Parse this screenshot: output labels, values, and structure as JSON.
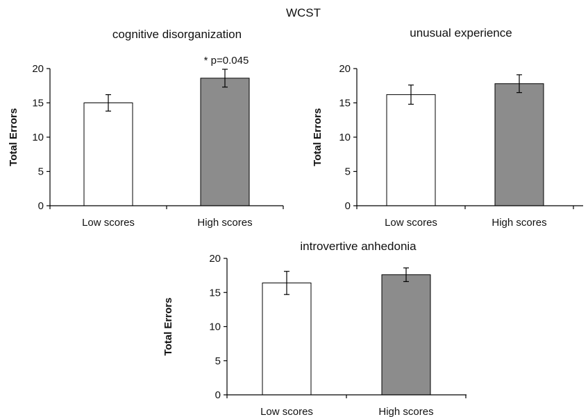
{
  "figure_title": "WCST",
  "colors": {
    "low": "#ffffff",
    "high": "#8c8c8c",
    "stroke": "#000000"
  },
  "chart_data": [
    {
      "type": "bar",
      "title": "cognitive disorganization",
      "categories": [
        "Low scores",
        "High scores"
      ],
      "values": [
        15.0,
        18.6
      ],
      "error": [
        1.2,
        1.3
      ],
      "ylabel": "Total Errors",
      "ylim": [
        0,
        20
      ],
      "yticks": [
        0,
        5,
        10,
        15,
        20
      ],
      "annotation": {
        "text": "* p=0.045",
        "category": "High scores"
      },
      "grid": false
    },
    {
      "type": "bar",
      "title": "unusual experience",
      "categories": [
        "Low scores",
        "High scores"
      ],
      "values": [
        16.2,
        17.8
      ],
      "error": [
        1.4,
        1.3
      ],
      "ylabel": "Total Errors",
      "ylim": [
        0,
        20
      ],
      "yticks": [
        0,
        5,
        10,
        15,
        20
      ],
      "grid": false
    },
    {
      "type": "bar",
      "title": "introvertive anhedonia",
      "categories": [
        "Low scores",
        "High scores"
      ],
      "values": [
        16.4,
        17.6
      ],
      "error": [
        1.7,
        1.0
      ],
      "ylabel": "Total Errors",
      "ylim": [
        0,
        20
      ],
      "yticks": [
        0,
        5,
        10,
        15,
        20
      ],
      "grid": false
    }
  ]
}
